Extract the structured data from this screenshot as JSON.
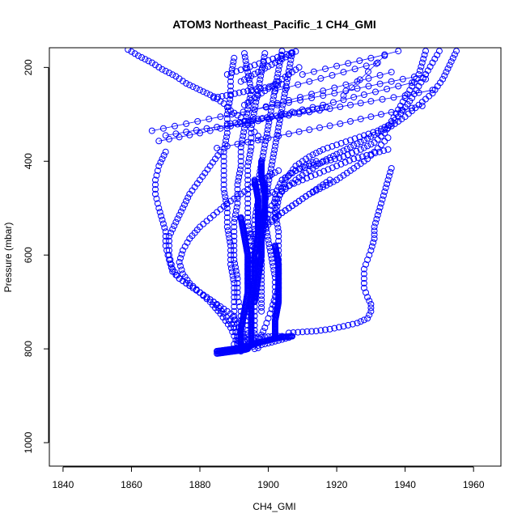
{
  "chart_data": {
    "type": "scatter",
    "title": "ATOM3 Northeast_Pacific_1 CH4_GMI",
    "xlabel": "CH4_GMI",
    "ylabel": "Pressure (mbar)",
    "xlim": [
      1836,
      1968
    ],
    "ylim": [
      1050,
      158
    ],
    "y_reversed": true,
    "xticks": [
      1840,
      1860,
      1880,
      1900,
      1920,
      1940,
      1960
    ],
    "yticks": [
      200,
      400,
      600,
      800,
      1000
    ],
    "grid": false,
    "marker": "open-circle",
    "color": "#0000ff",
    "series": [
      {
        "x": [
          1859,
          1862,
          1866,
          1869,
          1873,
          1876,
          1880,
          1884,
          1887,
          1889,
          1892,
          1894,
          1896,
          1898
        ],
        "y": [
          162,
          175,
          190,
          204,
          219,
          234,
          248,
          262,
          277,
          292,
          307,
          322,
          338,
          354
        ],
        "connect": false
      },
      {
        "x": [
          1893,
          1894,
          1895,
          1894,
          1893,
          1892,
          1892,
          1891,
          1891,
          1890,
          1890,
          1890,
          1891,
          1891,
          1892,
          1892,
          1892,
          1893,
          1893,
          1893,
          1892,
          1892
        ],
        "y": [
          170,
          210,
          250,
          290,
          330,
          370,
          410,
          450,
          490,
          530,
          570,
          610,
          650,
          690,
          720,
          740,
          760,
          775,
          785,
          795,
          800,
          805
        ],
        "connect": false
      },
      {
        "x": [
          1899,
          1898,
          1897,
          1896,
          1895,
          1895,
          1894,
          1894,
          1894,
          1894,
          1895,
          1895,
          1895,
          1896,
          1896,
          1896,
          1896,
          1896,
          1896,
          1896
        ],
        "y": [
          170,
          210,
          250,
          290,
          330,
          370,
          410,
          450,
          490,
          530,
          570,
          610,
          650,
          690,
          720,
          740,
          760,
          775,
          790,
          800
        ],
        "connect": false
      },
      {
        "x": [
          1904,
          1903,
          1902,
          1901,
          1900,
          1899,
          1898,
          1897,
          1897,
          1896,
          1896,
          1896,
          1895,
          1895,
          1895,
          1894,
          1894,
          1894,
          1894,
          1893
        ],
        "y": [
          165,
          205,
          245,
          285,
          325,
          365,
          405,
          445,
          485,
          525,
          565,
          605,
          645,
          685,
          715,
          740,
          760,
          775,
          790,
          800
        ],
        "connect": false
      },
      {
        "x": [
          1907,
          1906,
          1905,
          1904,
          1903,
          1902,
          1901,
          1900,
          1899,
          1899,
          1900,
          1901,
          1902,
          1902,
          1901,
          1900,
          1899,
          1898,
          1897,
          1897
        ],
        "y": [
          168,
          208,
          248,
          288,
          328,
          368,
          408,
          448,
          488,
          528,
          568,
          608,
          648,
          688,
          715,
          735,
          755,
          770,
          785,
          798
        ],
        "connect": false
      },
      {
        "x": [
          1890,
          1889,
          1889,
          1888,
          1888,
          1887,
          1887,
          1887,
          1888,
          1888,
          1889,
          1889,
          1890,
          1890,
          1890,
          1890,
          1891,
          1891
        ],
        "y": [
          180,
          220,
          260,
          300,
          340,
          380,
          420,
          460,
          500,
          540,
          580,
          620,
          660,
          700,
          730,
          755,
          775,
          790
        ],
        "connect": false
      },
      {
        "x": [
          1870,
          1868,
          1867,
          1867,
          1868,
          1869,
          1870,
          1870,
          1871,
          1872,
          1874,
          1877,
          1880,
          1883,
          1886,
          1889,
          1891,
          1892,
          1892
        ],
        "y": [
          380,
          410,
          440,
          470,
          500,
          525,
          550,
          580,
          610,
          635,
          650,
          665,
          680,
          695,
          710,
          725,
          745,
          770,
          795
        ],
        "connect": false
      },
      {
        "x": [
          1886,
          1883,
          1880,
          1877,
          1875,
          1873,
          1871,
          1871,
          1872,
          1874,
          1877,
          1880,
          1884,
          1887,
          1890,
          1892
        ],
        "y": [
          380,
          410,
          440,
          470,
          500,
          530,
          560,
          600,
          630,
          650,
          665,
          680,
          700,
          725,
          755,
          790
        ],
        "connect": false
      },
      {
        "x": [
          1903,
          1898,
          1893,
          1888,
          1884,
          1880,
          1877,
          1875,
          1874,
          1875,
          1877,
          1880,
          1883,
          1886,
          1889,
          1891
        ],
        "y": [
          420,
          440,
          465,
          490,
          515,
          540,
          565,
          590,
          615,
          640,
          660,
          680,
          700,
          725,
          755,
          790
        ],
        "connect": false
      },
      {
        "x": [
          1935,
          1933,
          1931,
          1929,
          1926,
          1923,
          1920,
          1916,
          1912,
          1908,
          1904,
          1900,
          1897,
          1895,
          1894,
          1894
        ],
        "y": [
          350,
          365,
          380,
          395,
          410,
          425,
          440,
          455,
          470,
          490,
          510,
          535,
          560,
          590,
          620,
          660
        ],
        "connect": false
      },
      {
        "x": [
          1936,
          1935,
          1934,
          1933,
          1932,
          1931,
          1931,
          1930,
          1929,
          1928,
          1928,
          1928,
          1929,
          1930,
          1930,
          1929,
          1926,
          1922,
          1918,
          1914,
          1910,
          1906
        ],
        "y": [
          415,
          440,
          465,
          490,
          515,
          540,
          565,
          590,
          610,
          630,
          650,
          670,
          690,
          705,
          720,
          735,
          745,
          752,
          758,
          762,
          764,
          766
        ],
        "connect": false
      },
      {
        "x": [
          1946,
          1945,
          1944,
          1942,
          1940,
          1938,
          1936,
          1934,
          1931,
          1927,
          1922,
          1917,
          1912,
          1908,
          1904,
          1902,
          1902,
          1903,
          1903,
          1903,
          1903,
          1902,
          1902,
          1902,
          1902
        ],
        "y": [
          165,
          190,
          215,
          240,
          265,
          290,
          315,
          340,
          360,
          375,
          390,
          400,
          410,
          420,
          440,
          470,
          510,
          550,
          590,
          630,
          670,
          700,
          730,
          755,
          775
        ],
        "connect": false
      },
      {
        "x": [
          1955,
          1953,
          1951,
          1948,
          1944,
          1940,
          1936,
          1932,
          1928,
          1924,
          1920,
          1916,
          1912,
          1908,
          1904,
          1901,
          1899,
          1898,
          1898,
          1898,
          1898
        ],
        "y": [
          165,
          195,
          225,
          255,
          280,
          305,
          325,
          340,
          355,
          370,
          385,
          400,
          420,
          440,
          465,
          495,
          530,
          570,
          620,
          670,
          720
        ],
        "connect": false
      },
      {
        "x": [
          1950,
          1948,
          1946,
          1944,
          1942,
          1940,
          1938,
          1936,
          1932,
          1928,
          1924,
          1920,
          1916,
          1912,
          1908,
          1905,
          1903,
          1902
        ],
        "y": [
          165,
          190,
          215,
          240,
          265,
          285,
          305,
          320,
          335,
          345,
          355,
          365,
          375,
          390,
          410,
          440,
          480,
          520
        ],
        "connect": false
      },
      {
        "x": [
          1866,
          1876,
          1886,
          1896,
          1906,
          1916,
          1926,
          1936,
          1946
        ],
        "y": [
          335,
          320,
          305,
          290,
          275,
          260,
          245,
          230,
          215
        ],
        "connect": true
      },
      {
        "x": [
          1868,
          1880,
          1892,
          1904,
          1916,
          1928,
          1938,
          1946
        ],
        "y": [
          357,
          340,
          320,
          300,
          280,
          258,
          240,
          225
        ],
        "connect": true
      },
      {
        "x": [
          1870,
          1882,
          1894,
          1906,
          1918,
          1930,
          1940,
          1948
        ],
        "y": [
          345,
          330,
          318,
          302,
          288,
          272,
          260,
          248
        ],
        "connect": true
      },
      {
        "x": [
          1885,
          1897,
          1909,
          1921,
          1933,
          1945
        ],
        "y": [
          372,
          355,
          337,
          320,
          300,
          282
        ],
        "connect": true
      },
      {
        "x": [
          1896,
          1906,
          1916,
          1926,
          1936
        ],
        "y": [
          290,
          270,
          250,
          230,
          210
        ],
        "connect": true
      },
      {
        "x": [
          1902,
          1912,
          1922,
          1932
        ],
        "y": [
          250,
          230,
          210,
          190
        ],
        "connect": true
      },
      {
        "x": [
          1910,
          1920,
          1930,
          1938
        ],
        "y": [
          215,
          197,
          180,
          165
        ],
        "connect": true
      },
      {
        "x": [
          1922,
          1934
        ],
        "y": [
          260,
          175
        ],
        "connect": true
      },
      {
        "x": [
          1914,
          1912,
          1910,
          1908,
          1906,
          1904
        ],
        "y": [
          400,
          405,
          412,
          420,
          430,
          440
        ],
        "connect": false
      },
      {
        "x": [
          1900,
          1905,
          1910,
          1915,
          1920,
          1925,
          1930,
          1935
        ],
        "y": [
          470,
          455,
          440,
          425,
          410,
          395,
          385,
          375
        ],
        "connect": false
      },
      {
        "x": [
          1894,
          1897,
          1900,
          1903,
          1906,
          1909,
          1912,
          1915,
          1918
        ],
        "y": [
          560,
          545,
          530,
          515,
          500,
          485,
          470,
          455,
          440
        ],
        "connect": false
      },
      {
        "x": [
          1889,
          1893,
          1897,
          1901,
          1905,
          1909,
          1913,
          1917
        ],
        "y": [
          320,
          315,
          310,
          305,
          300,
          295,
          290,
          285
        ],
        "connect": false
      },
      {
        "x": [
          1884,
          1889,
          1894,
          1899,
          1904
        ],
        "y": [
          265,
          258,
          250,
          243,
          236
        ],
        "connect": false
      },
      {
        "x": [
          1888,
          1892,
          1896,
          1900,
          1904,
          1908
        ],
        "y": [
          215,
          205,
          195,
          185,
          175,
          166
        ],
        "connect": false
      },
      {
        "x": [
          1892,
          1897,
          1902,
          1907
        ],
        "y": [
          230,
          210,
          190,
          170
        ],
        "connect": false
      },
      {
        "x": [
          1893,
          1897,
          1901,
          1905,
          1909
        ],
        "y": [
          280,
          260,
          240,
          220,
          200
        ],
        "connect": false
      },
      {
        "x": [
          1885,
          1888,
          1891,
          1894,
          1897,
          1900,
          1903,
          1906
        ],
        "y": [
          805,
          803,
          800,
          797,
          793,
          788,
          782,
          776
        ],
        "connect": false
      },
      {
        "x": [
          1890,
          1892,
          1894,
          1896,
          1898,
          1900,
          1902,
          1904
        ],
        "y": [
          790,
          785,
          780,
          777,
          775,
          774,
          773,
          773
        ],
        "connect": false
      }
    ],
    "band_traces": [
      {
        "x": [
          1885,
          1890,
          1894,
          1898,
          1902,
          1904,
          1907
        ],
        "y": [
          805,
          800,
          795,
          785,
          778,
          775,
          773
        ]
      },
      {
        "x": [
          1885,
          1887,
          1889,
          1891,
          1893,
          1894
        ],
        "y": [
          810,
          808,
          806,
          804,
          802,
          800
        ]
      },
      {
        "x": [
          1892,
          1893,
          1894,
          1894,
          1894,
          1893,
          1892,
          1892
        ],
        "y": [
          520,
          560,
          600,
          640,
          680,
          720,
          760,
          800
        ]
      },
      {
        "x": [
          1896,
          1897,
          1897,
          1897,
          1896,
          1896,
          1895,
          1895
        ],
        "y": [
          440,
          480,
          520,
          560,
          600,
          650,
          700,
          790
        ]
      },
      {
        "x": [
          1899,
          1899,
          1898,
          1898,
          1897,
          1896
        ],
        "y": [
          450,
          500,
          550,
          600,
          650,
          700
        ]
      },
      {
        "x": [
          1902,
          1903,
          1903,
          1903,
          1902,
          1902
        ],
        "y": [
          580,
          620,
          660,
          700,
          740,
          775
        ]
      },
      {
        "x": [
          1898,
          1898,
          1899,
          1899
        ],
        "y": [
          400,
          430,
          470,
          520
        ]
      }
    ]
  }
}
